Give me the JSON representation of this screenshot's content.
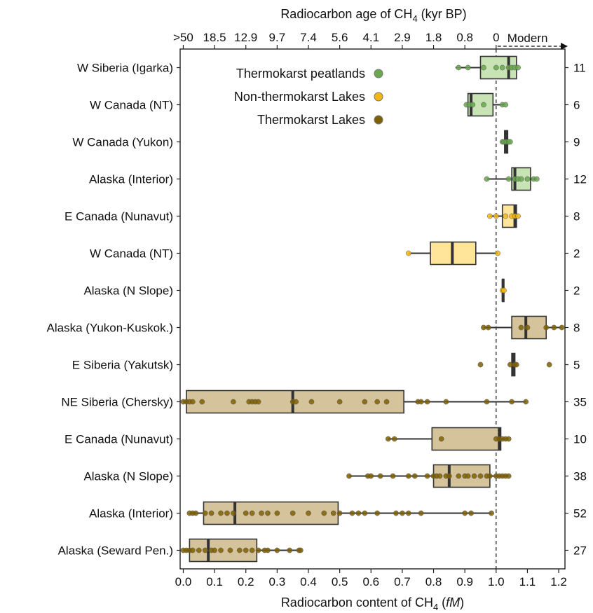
{
  "chart_data": {
    "type": "boxplot",
    "title": "",
    "xlabel": "Radiocarbon content of CH4 (fM)",
    "xlabel_parts": {
      "main": "Radiocarbon content of CH",
      "sub": "4",
      "post": " (",
      "italic": "fM",
      "close": ")"
    },
    "xlim": [
      -0.01,
      1.22
    ],
    "x_ticks": [
      0.0,
      0.1,
      0.2,
      0.3,
      0.4,
      0.5,
      0.6,
      0.7,
      0.8,
      0.9,
      1.0,
      1.1,
      1.2
    ],
    "x_tick_labels": [
      "0.0",
      "0.1",
      "0.2",
      "0.3",
      "0.4",
      "0.5",
      "0.6",
      "0.7",
      "0.8",
      "0.9",
      "1.0",
      "1.1",
      "1.2"
    ],
    "top_axis": {
      "label_parts": {
        "main": "Radiocarbon age of CH",
        "sub": "4",
        "post": " (kyr BP)"
      },
      "ticks": [
        0.0,
        0.1,
        0.2,
        0.3,
        0.4,
        0.5,
        0.6,
        0.7,
        0.8,
        0.9,
        1.0
      ],
      "tick_labels": [
        ">50",
        "18.5",
        "12.9",
        "9.7",
        "7.4",
        "5.6",
        "4.1",
        "2.9",
        "1.8",
        "0.8",
        "0"
      ],
      "modern_label": "Modern",
      "modern_range": [
        1.0,
        1.2
      ]
    },
    "reference_line": 1.0,
    "legend": [
      {
        "label": "Thermokarst peatlands",
        "color": "#6aa84f"
      },
      {
        "label": "Non-thermokarst Lakes",
        "color": "#f1b716"
      },
      {
        "label": "Thermokarst Lakes",
        "color": "#7f6000"
      }
    ],
    "colors": {
      "peat_fill": "#c9e4b4",
      "peat_dot": "#6aa84f",
      "nonlake_fill": "#ffe599",
      "nonlake_dot": "#f1b716",
      "lake_fill": "#d5c49b",
      "lake_dot": "#7f6000",
      "box_stroke": "#333333",
      "median": "#333333"
    },
    "rows": [
      {
        "label": "W Siberia (Igarka)",
        "n": "11",
        "group": "peat",
        "whisker": [
          0.87,
          1.07
        ],
        "box": [
          0.95,
          1.065
        ],
        "median": 1.04,
        "points": [
          0.88,
          0.91,
          0.96,
          1.0,
          1.02,
          1.04,
          1.05,
          1.06,
          1.07
        ]
      },
      {
        "label": "W Canada (NT)",
        "n": "6",
        "group": "peat",
        "whisker": [
          0.905,
          1.03
        ],
        "box": [
          0.91,
          0.99
        ],
        "median": 0.92,
        "points": [
          0.905,
          0.915,
          0.925,
          0.96,
          1.02,
          1.03
        ]
      },
      {
        "label": "W Canada (Yukon)",
        "n": "9",
        "group": "peat",
        "whisker": [
          1.02,
          1.045
        ],
        "box": [
          1.027,
          1.037
        ],
        "median": 1.032,
        "points": [
          1.02,
          1.025,
          1.03,
          1.035,
          1.04,
          1.045
        ]
      },
      {
        "label": "Alaska (Interior)",
        "n": "12",
        "group": "peat",
        "whisker": [
          0.97,
          1.13
        ],
        "box": [
          1.05,
          1.11
        ],
        "median": 1.06,
        "points": [
          0.97,
          1.04,
          1.06,
          1.07,
          1.08,
          1.1,
          1.12,
          1.13
        ]
      },
      {
        "label": "E Canada (Nunavut)",
        "n": "8",
        "group": "nonlake",
        "whisker": [
          0.98,
          1.07
        ],
        "box": [
          1.02,
          1.065
        ],
        "median": 1.06,
        "points": [
          0.98,
          1.0,
          1.03,
          1.05,
          1.06,
          1.07
        ]
      },
      {
        "label": "W Canada (NT)",
        "n": "2",
        "group": "nonlake",
        "whisker": [
          0.72,
          1.005
        ],
        "box": [
          0.79,
          0.935
        ],
        "median": 0.86,
        "points": [
          0.72,
          1.005
        ]
      },
      {
        "label": "Alaska (N Slope)",
        "n": "2",
        "group": "nonlake",
        "whisker": [
          1.02,
          1.025
        ],
        "box": [
          1.02,
          1.025
        ],
        "median": 1.022,
        "points": [
          1.02,
          1.025
        ]
      },
      {
        "label": "Alaska (Yukon-Kuskok.)",
        "n": "8",
        "group": "lake",
        "whisker": [
          0.96,
          1.21
        ],
        "box": [
          1.05,
          1.16
        ],
        "median": 1.095,
        "points": [
          0.96,
          0.975,
          1.08,
          1.1,
          1.16,
          1.185,
          1.21
        ]
      },
      {
        "label": "E Siberia (Yakutsk)",
        "n": "5",
        "group": "lake",
        "whisker": [
          1.05,
          1.06
        ],
        "box": [
          1.05,
          1.06
        ],
        "median": 1.055,
        "points": [
          0.95,
          1.045,
          1.06,
          1.065,
          1.17
        ]
      },
      {
        "label": "NE Siberia (Chersky)",
        "n": "35",
        "group": "lake",
        "whisker": [
          0.0,
          1.095
        ],
        "box": [
          0.01,
          0.705
        ],
        "median": 0.35,
        "points": [
          0.0,
          0.01,
          0.02,
          0.03,
          0.06,
          0.16,
          0.21,
          0.22,
          0.23,
          0.24,
          0.35,
          0.36,
          0.41,
          0.5,
          0.58,
          0.62,
          0.65,
          0.75,
          0.76,
          0.78,
          0.84,
          0.97,
          1.05,
          1.095
        ]
      },
      {
        "label": "E Canada (Nunavut)",
        "n": "10",
        "group": "lake",
        "whisker": [
          0.655,
          1.04
        ],
        "box": [
          0.795,
          1.015
        ],
        "median": 1.01,
        "points": [
          0.655,
          0.675,
          0.825,
          1.0,
          1.01,
          1.02,
          1.03,
          1.04
        ]
      },
      {
        "label": "Alaska (N Slope)",
        "n": "38",
        "group": "lake",
        "whisker": [
          0.53,
          1.04
        ],
        "box": [
          0.8,
          0.98
        ],
        "median": 0.85,
        "points": [
          0.53,
          0.59,
          0.6,
          0.63,
          0.67,
          0.72,
          0.74,
          0.78,
          0.8,
          0.81,
          0.82,
          0.84,
          0.85,
          0.88,
          0.9,
          0.91,
          0.93,
          0.95,
          0.97,
          0.98,
          1.0,
          1.01,
          1.02,
          1.03,
          1.04
        ]
      },
      {
        "label": "Alaska (Interior)",
        "n": "52",
        "group": "lake",
        "whisker": [
          0.02,
          0.985
        ],
        "box": [
          0.065,
          0.495
        ],
        "median": 0.165,
        "points": [
          0.02,
          0.03,
          0.04,
          0.07,
          0.09,
          0.12,
          0.14,
          0.16,
          0.2,
          0.22,
          0.25,
          0.27,
          0.3,
          0.35,
          0.4,
          0.45,
          0.48,
          0.5,
          0.54,
          0.56,
          0.58,
          0.62,
          0.68,
          0.7,
          0.72,
          0.76,
          0.9,
          0.92,
          0.985
        ]
      },
      {
        "label": "Alaska (Seward Pen.)",
        "n": "27",
        "group": "lake",
        "whisker": [
          0.0,
          0.375
        ],
        "box": [
          0.02,
          0.235
        ],
        "median": 0.08,
        "points": [
          0.0,
          0.01,
          0.02,
          0.03,
          0.05,
          0.07,
          0.09,
          0.1,
          0.12,
          0.15,
          0.18,
          0.2,
          0.22,
          0.24,
          0.26,
          0.27,
          0.3,
          0.34,
          0.37,
          0.375
        ]
      }
    ]
  }
}
